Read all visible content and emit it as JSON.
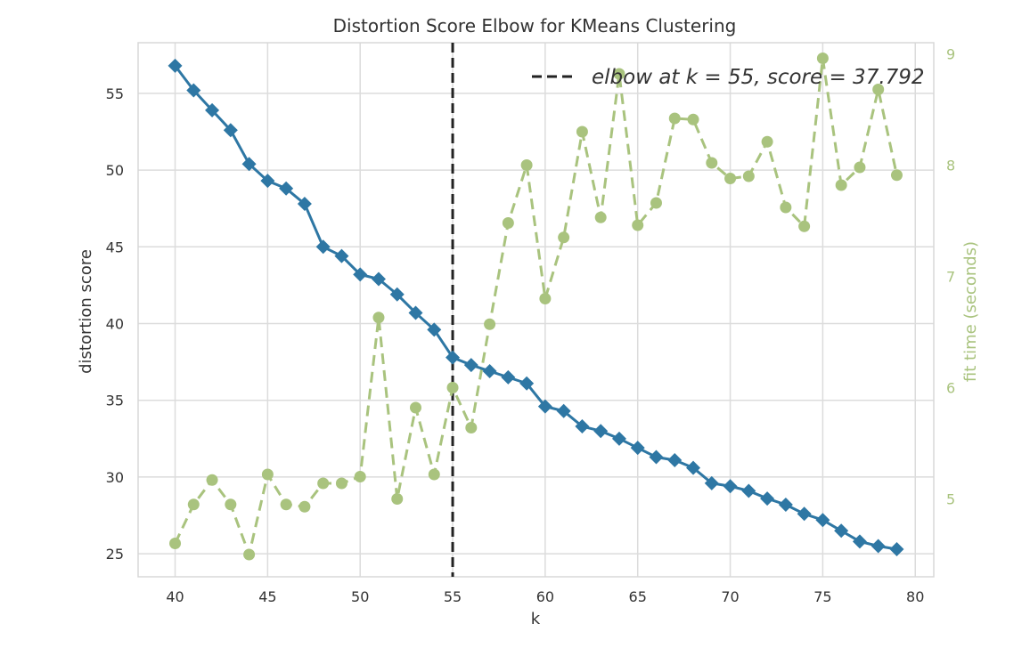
{
  "chart_data": {
    "type": "line",
    "title": "Distortion Score Elbow for KMeans Clustering",
    "xlabel": "k",
    "ylabel": "distortion score",
    "y2label": "fit time (seconds)",
    "xlim": [
      38,
      81
    ],
    "ylim": [
      23.5,
      58.3
    ],
    "y2lim": [
      4.3,
      9.1
    ],
    "xticks": [
      40,
      45,
      50,
      55,
      60,
      65,
      70,
      75,
      80
    ],
    "yticks": [
      25,
      30,
      35,
      40,
      45,
      50,
      55
    ],
    "y2ticks": [
      5,
      6,
      7,
      8,
      9
    ],
    "grid": true,
    "legend": {
      "position": "top-right",
      "label": "elbow at k = 55, score = 37.792"
    },
    "elbow": {
      "k": 55,
      "score": 37.792
    },
    "colors": {
      "distortion": "#2e77a4",
      "fit_time": "#a9c37e",
      "elbow": "#222222"
    },
    "x": [
      40,
      41,
      42,
      43,
      44,
      45,
      46,
      47,
      48,
      49,
      50,
      51,
      52,
      53,
      54,
      55,
      56,
      57,
      58,
      59,
      60,
      61,
      62,
      63,
      64,
      65,
      66,
      67,
      68,
      69,
      70,
      71,
      72,
      73,
      74,
      75,
      76,
      77,
      78,
      79
    ],
    "series": [
      {
        "name": "distortion score",
        "axis": "left",
        "values": [
          56.8,
          55.2,
          53.9,
          52.6,
          50.4,
          49.3,
          48.8,
          47.8,
          45.0,
          44.4,
          43.2,
          42.9,
          41.9,
          40.7,
          39.6,
          37.792,
          37.3,
          36.9,
          36.5,
          36.1,
          34.6,
          34.3,
          33.3,
          33.0,
          32.5,
          31.9,
          31.3,
          31.1,
          30.6,
          29.6,
          29.4,
          29.1,
          28.6,
          28.2,
          27.6,
          27.2,
          26.5,
          25.8,
          25.5,
          25.3
        ]
      },
      {
        "name": "fit time",
        "axis": "right",
        "values": [
          4.6,
          4.95,
          5.17,
          4.95,
          4.5,
          5.22,
          4.95,
          4.93,
          5.14,
          5.14,
          5.2,
          6.63,
          5.0,
          5.82,
          5.22,
          6.0,
          5.64,
          6.57,
          7.48,
          8.0,
          6.8,
          7.35,
          8.3,
          7.53,
          8.82,
          7.46,
          7.66,
          8.42,
          8.41,
          8.02,
          7.88,
          7.9,
          8.21,
          7.62,
          7.45,
          8.96,
          7.82,
          7.98,
          8.68,
          7.91
        ]
      }
    ]
  }
}
